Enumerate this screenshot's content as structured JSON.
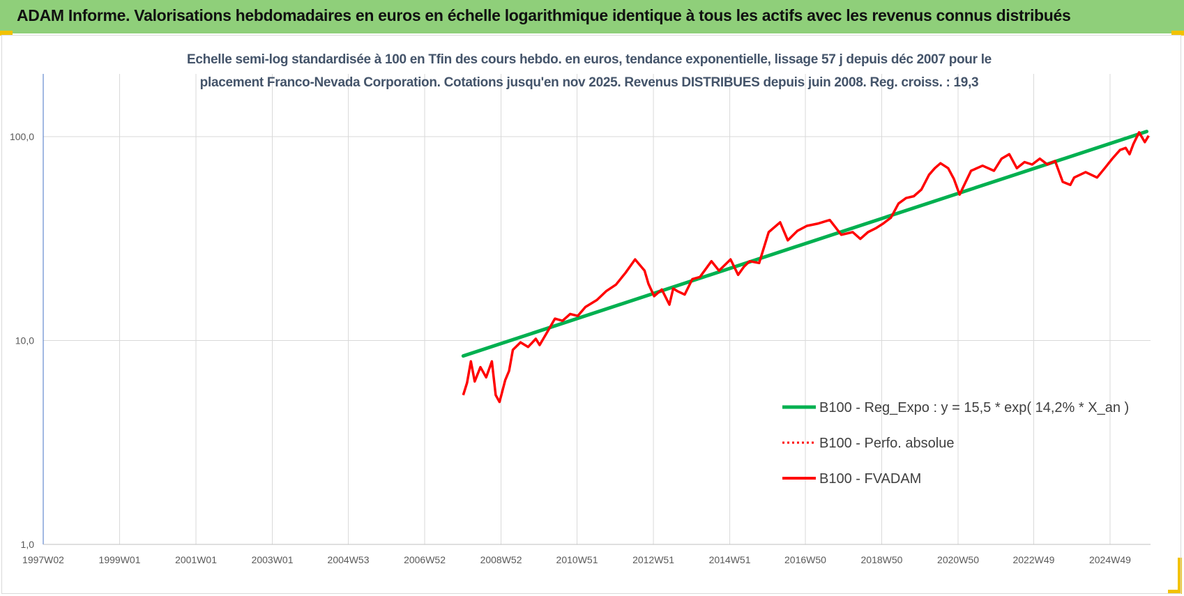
{
  "header": {
    "title": "ADAM Informe. Valorisations hebdomadaires en euros en échelle logarithmique identique à tous les actifs avec les revenus connus distribués"
  },
  "colors": {
    "banner": "#8fcf7a",
    "trend": "#00b050",
    "series": "#ff0000",
    "title_text": "#44546a",
    "gridline": "#d9d9d9"
  },
  "chart_data": {
    "type": "line",
    "title_line1": "Echelle semi-log standardisée à 100 en Tfin des cours hebdo. en euros, tendance exponentielle, lissage 57 j depuis déc 2007 pour le",
    "title_line2": "placement Franco-Nevada Corporation. Cotations jusqu'en nov 2025. Revenus DISTRIBUES depuis juin 2008. Reg. croiss. : 19,3",
    "y_scale": "log",
    "ylim": [
      1,
      200
    ],
    "xlim": [
      1997.0,
      2026.0
    ],
    "y_ticks": [
      {
        "value": 1,
        "label": "1,0"
      },
      {
        "value": 10,
        "label": "10,0"
      },
      {
        "value": 100,
        "label": "100,0"
      }
    ],
    "x_ticks": [
      {
        "value": 1997.0,
        "label": "1997W02"
      },
      {
        "value": 1999.0,
        "label": "1999W01"
      },
      {
        "value": 2001.0,
        "label": "2001W01"
      },
      {
        "value": 2003.0,
        "label": "2003W01"
      },
      {
        "value": 2004.99,
        "label": "2004W53"
      },
      {
        "value": 2006.99,
        "label": "2006W52"
      },
      {
        "value": 2008.99,
        "label": "2008W52"
      },
      {
        "value": 2010.98,
        "label": "2010W51"
      },
      {
        "value": 2012.98,
        "label": "2012W51"
      },
      {
        "value": 2014.98,
        "label": "2014W51"
      },
      {
        "value": 2016.96,
        "label": "2016W50"
      },
      {
        "value": 2018.96,
        "label": "2018W50"
      },
      {
        "value": 2020.96,
        "label": "2020W50"
      },
      {
        "value": 2022.94,
        "label": "2022W49"
      },
      {
        "value": 2024.94,
        "label": "2024W49"
      }
    ],
    "grid": true,
    "legend_position": "right",
    "series": [
      {
        "name": "B100 - Reg_Expo : y = 15,5 * exp( 14,2% *  X_an )",
        "style": "solid-thick",
        "x": [
          2008.0,
          2025.9
        ],
        "values": [
          8.4,
          106
        ]
      },
      {
        "name": "B100 - Perfo. absolue",
        "style": "dotted",
        "x": [],
        "values": []
      },
      {
        "name": "B100 - FVADAM",
        "style": "solid",
        "x": [
          2008.0,
          2008.1,
          2008.2,
          2008.3,
          2008.45,
          2008.6,
          2008.75,
          2008.85,
          2008.95,
          2009.1,
          2009.2,
          2009.3,
          2009.5,
          2009.7,
          2009.9,
          2010.0,
          2010.2,
          2010.4,
          2010.6,
          2010.8,
          2011.0,
          2011.2,
          2011.5,
          2011.75,
          2012.0,
          2012.25,
          2012.5,
          2012.75,
          2012.85,
          2013.0,
          2013.2,
          2013.4,
          2013.5,
          2013.6,
          2013.8,
          2014.0,
          2014.2,
          2014.5,
          2014.7,
          2015.0,
          2015.2,
          2015.35,
          2015.5,
          2015.75,
          2016.0,
          2016.3,
          2016.5,
          2016.75,
          2017.0,
          2017.3,
          2017.6,
          2017.9,
          2018.2,
          2018.4,
          2018.6,
          2018.8,
          2019.0,
          2019.2,
          2019.4,
          2019.6,
          2019.8,
          2020.0,
          2020.2,
          2020.35,
          2020.5,
          2020.7,
          2020.85,
          2021.0,
          2021.3,
          2021.6,
          2021.9,
          2022.1,
          2022.3,
          2022.5,
          2022.7,
          2022.9,
          2023.1,
          2023.3,
          2023.5,
          2023.7,
          2023.9,
          2024.0,
          2024.3,
          2024.6,
          2024.8,
          2025.0,
          2025.2,
          2025.35,
          2025.45,
          2025.55,
          2025.7,
          2025.85,
          2025.95
        ],
        "values": [
          5.4,
          6.2,
          7.9,
          6.3,
          7.4,
          6.6,
          7.9,
          5.4,
          5.0,
          6.4,
          7.1,
          9.0,
          9.8,
          9.3,
          10.2,
          9.5,
          11.0,
          12.8,
          12.5,
          13.5,
          13.2,
          14.6,
          15.8,
          17.5,
          18.8,
          21.5,
          25.0,
          22.0,
          19.0,
          16.5,
          17.8,
          15.0,
          18.0,
          17.5,
          16.8,
          20.0,
          20.5,
          24.5,
          22.0,
          25.0,
          21.0,
          23.0,
          24.5,
          24.0,
          34.0,
          38.0,
          31.0,
          34.5,
          36.5,
          37.5,
          39.0,
          33.0,
          34.0,
          31.5,
          34.0,
          35.5,
          37.5,
          40.0,
          47.0,
          50.0,
          51.0,
          55.0,
          65.0,
          70.0,
          74.0,
          70.0,
          62.0,
          52.0,
          68.0,
          72.0,
          68.0,
          78.0,
          82.0,
          70.0,
          75.0,
          73.0,
          78.0,
          73.0,
          76.0,
          60.0,
          58.0,
          63.0,
          67.0,
          63.0,
          70.0,
          78.0,
          86.0,
          88.0,
          82.0,
          92.0,
          105.0,
          94.0,
          101.0
        ]
      }
    ]
  }
}
